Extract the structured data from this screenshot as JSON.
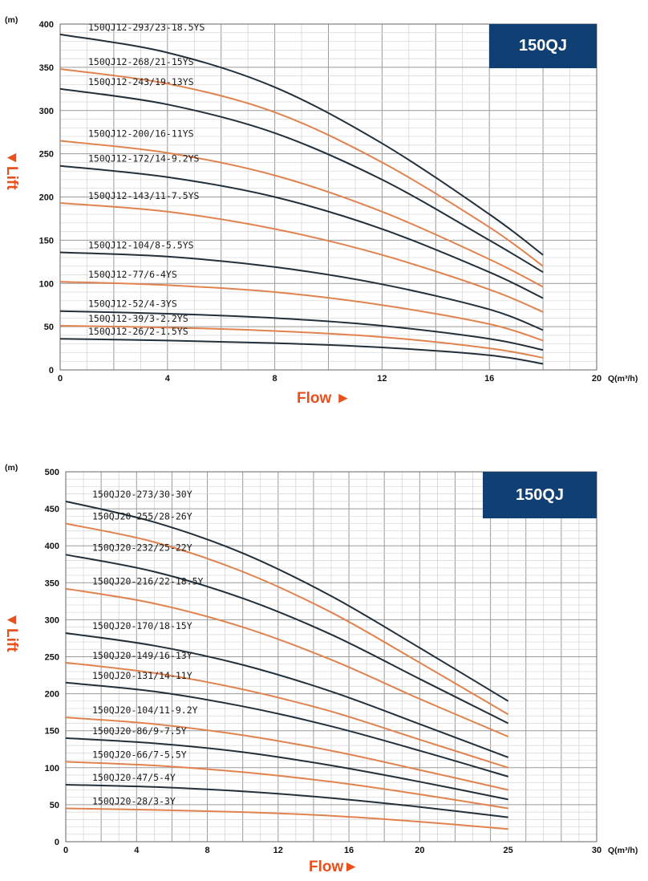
{
  "chart_data": [
    {
      "type": "line",
      "badge": "150QJ",
      "xlabel": "Flow ►",
      "ylabel": "◄Lift",
      "x_unit": "Q(m³/h)",
      "y_unit": "(m)",
      "xlim": [
        0,
        20
      ],
      "ylim": [
        0,
        400
      ],
      "x_ticks": [
        "0",
        "4",
        "8",
        "12",
        "16",
        "20"
      ],
      "y_ticks": [
        "0",
        "50",
        "100",
        "150",
        "200",
        "250",
        "300",
        "350",
        "400"
      ],
      "grid": true,
      "colors": {
        "dark": "#22303b",
        "orange": "#e0834f",
        "badge": "#103f73",
        "accent": "#e8501c"
      },
      "series": [
        {
          "name": "150QJ12-293/23-18.5YS",
          "color": "dark",
          "points": [
            [
              0,
              388
            ],
            [
              4,
              367
            ],
            [
              8,
              327
            ],
            [
              12,
              262
            ],
            [
              16,
              180
            ],
            [
              18,
              133
            ]
          ]
        },
        {
          "name": "150QJ12-268/21-15YS",
          "color": "orange",
          "points": [
            [
              0,
              348
            ],
            [
              4,
              331
            ],
            [
              8,
              298
            ],
            [
              12,
              240
            ],
            [
              16,
              165
            ],
            [
              18,
              120
            ]
          ]
        },
        {
          "name": "150QJ12-243/19-13YS",
          "color": "dark",
          "points": [
            [
              0,
              325
            ],
            [
              4,
              307
            ],
            [
              8,
              274
            ],
            [
              12,
              220
            ],
            [
              16,
              150
            ],
            [
              18,
              113
            ]
          ]
        },
        {
          "name": "150QJ12-200/16-11YS",
          "color": "orange",
          "points": [
            [
              0,
              265
            ],
            [
              4,
              251
            ],
            [
              8,
              225
            ],
            [
              12,
              183
            ],
            [
              16,
              128
            ],
            [
              18,
              96
            ]
          ]
        },
        {
          "name": "150QJ12-172/14-9.2YS",
          "color": "dark",
          "points": [
            [
              0,
              236
            ],
            [
              4,
              223
            ],
            [
              8,
              200
            ],
            [
              12,
              163
            ],
            [
              16,
              113
            ],
            [
              18,
              83
            ]
          ]
        },
        {
          "name": "150QJ12-143/11-7.5YS",
          "color": "orange",
          "points": [
            [
              0,
              193
            ],
            [
              4,
              183
            ],
            [
              8,
              163
            ],
            [
              12,
              133
            ],
            [
              16,
              93
            ],
            [
              18,
              67
            ]
          ]
        },
        {
          "name": "150QJ12-104/8-5.5YS",
          "color": "dark",
          "points": [
            [
              0,
              136
            ],
            [
              4,
              131
            ],
            [
              8,
              119
            ],
            [
              12,
              99
            ],
            [
              16,
              70
            ],
            [
              18,
              46
            ]
          ]
        },
        {
          "name": "150QJ12-77/6-4YS",
          "color": "orange",
          "points": [
            [
              0,
              102
            ],
            [
              4,
              98
            ],
            [
              8,
              90
            ],
            [
              12,
              75
            ],
            [
              16,
              53
            ],
            [
              18,
              34
            ]
          ]
        },
        {
          "name": "150QJ12-52/4-3YS",
          "color": "dark",
          "points": [
            [
              0,
              68
            ],
            [
              4,
              65
            ],
            [
              8,
              60
            ],
            [
              12,
              51
            ],
            [
              16,
              36
            ],
            [
              18,
              23
            ]
          ]
        },
        {
          "name": "150QJ12-39/3-2.2YS",
          "color": "orange",
          "points": [
            [
              0,
              51
            ],
            [
              4,
              49
            ],
            [
              8,
              45
            ],
            [
              12,
              38
            ],
            [
              16,
              25
            ],
            [
              18,
              14
            ]
          ]
        },
        {
          "name": "150QJ12-26/2-1.5YS",
          "color": "dark",
          "points": [
            [
              0,
              36
            ],
            [
              4,
              34
            ],
            [
              8,
              31
            ],
            [
              12,
              26
            ],
            [
              16,
              17
            ],
            [
              18,
              7
            ]
          ]
        }
      ]
    },
    {
      "type": "line",
      "badge": "150QJ",
      "xlabel": "Flow►",
      "ylabel": "◄Lift",
      "x_unit": "Q(m³/h)",
      "y_unit": "(m)",
      "xlim": [
        0,
        30
      ],
      "ylim": [
        0,
        500
      ],
      "x_ticks": [
        "0",
        "4",
        "8",
        "12",
        "16",
        "20",
        "25",
        "30"
      ],
      "y_ticks": [
        "0",
        "50",
        "100",
        "150",
        "200",
        "250",
        "300",
        "350",
        "400",
        "450",
        "500"
      ],
      "grid": true,
      "colors": {
        "dark": "#22303b",
        "orange": "#e0834f",
        "badge": "#103f73",
        "accent": "#e8501c"
      },
      "series": [
        {
          "name": "150QJ20-273/30-30Y",
          "color": "dark",
          "points": [
            [
              0,
              460
            ],
            [
              5,
              432
            ],
            [
              10,
              390
            ],
            [
              15,
              332
            ],
            [
              20,
              262
            ],
            [
              25,
              190
            ]
          ]
        },
        {
          "name": "150QJ20-255/28-26Y",
          "color": "orange",
          "points": [
            [
              0,
              430
            ],
            [
              5,
              405
            ],
            [
              10,
              365
            ],
            [
              15,
              310
            ],
            [
              20,
              242
            ],
            [
              25,
              172
            ]
          ]
        },
        {
          "name": "150QJ20-232/25-22Y",
          "color": "dark",
          "points": [
            [
              0,
              388
            ],
            [
              5,
              365
            ],
            [
              10,
              329
            ],
            [
              15,
              280
            ],
            [
              20,
              220
            ],
            [
              25,
              160
            ]
          ]
        },
        {
          "name": "150QJ20-216/22-18.5Y",
          "color": "orange",
          "points": [
            [
              0,
              342
            ],
            [
              5,
              322
            ],
            [
              10,
              290
            ],
            [
              15,
              246
            ],
            [
              20,
              193
            ],
            [
              25,
              142
            ]
          ]
        },
        {
          "name": "150QJ20-170/18-15Y",
          "color": "dark",
          "points": [
            [
              0,
              282
            ],
            [
              5,
              265
            ],
            [
              10,
              239
            ],
            [
              15,
              203
            ],
            [
              20,
              159
            ],
            [
              25,
              114
            ]
          ]
        },
        {
          "name": "150QJ20-149/16-13Y",
          "color": "orange",
          "points": [
            [
              0,
              242
            ],
            [
              5,
              228
            ],
            [
              10,
              206
            ],
            [
              15,
              176
            ],
            [
              20,
              138
            ],
            [
              25,
              100
            ]
          ]
        },
        {
          "name": "150QJ20-131/14-11Y",
          "color": "dark",
          "points": [
            [
              0,
              215
            ],
            [
              5,
              203
            ],
            [
              10,
              183
            ],
            [
              15,
              156
            ],
            [
              20,
              123
            ],
            [
              25,
              88
            ]
          ]
        },
        {
          "name": "150QJ20-104/11-9.2Y",
          "color": "orange",
          "points": [
            [
              0,
              168
            ],
            [
              5,
              159
            ],
            [
              10,
              144
            ],
            [
              15,
              123
            ],
            [
              20,
              97
            ],
            [
              25,
              70
            ]
          ]
        },
        {
          "name": "150QJ20-86/9-7.5Y",
          "color": "dark",
          "points": [
            [
              0,
              140
            ],
            [
              5,
              133
            ],
            [
              10,
              121
            ],
            [
              15,
              103
            ],
            [
              20,
              81
            ],
            [
              25,
              57
            ]
          ]
        },
        {
          "name": "150QJ20-66/7-5.5Y",
          "color": "orange",
          "points": [
            [
              0,
              108
            ],
            [
              5,
              103
            ],
            [
              10,
              94
            ],
            [
              15,
              81
            ],
            [
              20,
              64
            ],
            [
              25,
              45
            ]
          ]
        },
        {
          "name": "150QJ20-47/5-4Y",
          "color": "dark",
          "points": [
            [
              0,
              77
            ],
            [
              5,
              74
            ],
            [
              10,
              68
            ],
            [
              15,
              59
            ],
            [
              20,
              47
            ],
            [
              25,
              33
            ]
          ]
        },
        {
          "name": "150QJ20-28/3-3Y",
          "color": "orange",
          "points": [
            [
              0,
              45
            ],
            [
              5,
              43
            ],
            [
              10,
              40
            ],
            [
              15,
              35
            ],
            [
              20,
              27
            ],
            [
              25,
              17
            ]
          ]
        }
      ]
    }
  ]
}
